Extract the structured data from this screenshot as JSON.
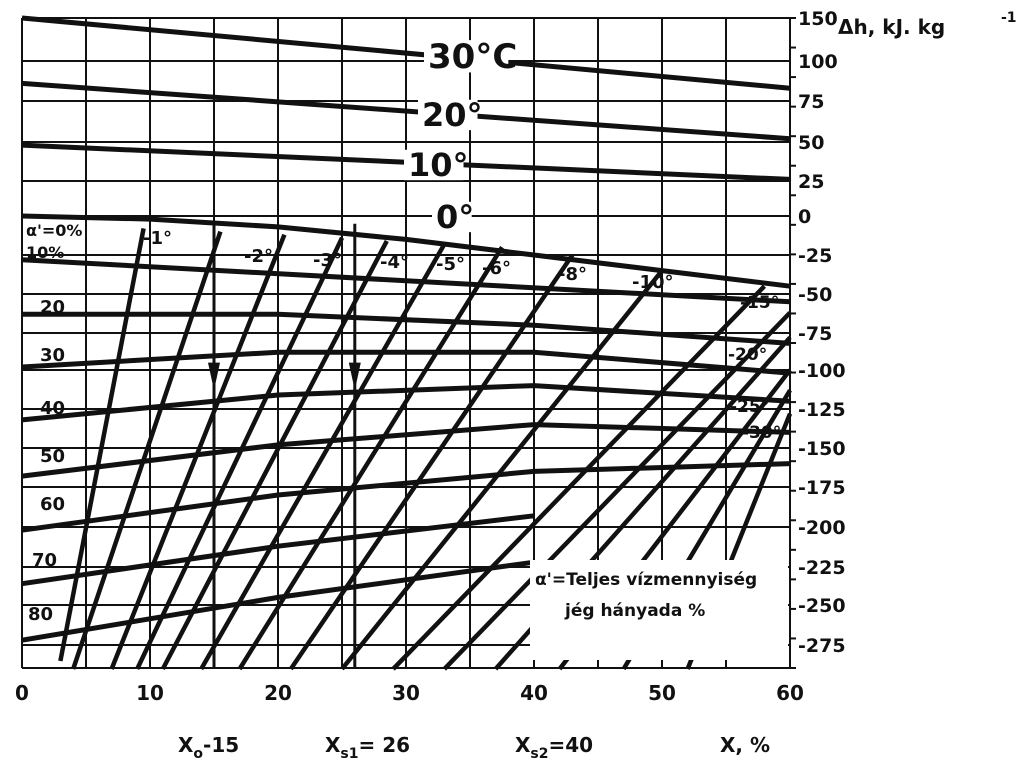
{
  "chart_data": {
    "type": "line",
    "title": "",
    "xlabel": "X, %",
    "ylabel": "Δh, kJ. kg",
    "ylabel_exp": "-1",
    "xlim": [
      0,
      60
    ],
    "ylim": [
      -290,
      150
    ],
    "x_ticks": [
      "0",
      "10",
      "20",
      "30",
      "40",
      "50",
      "60"
    ],
    "y_ticks": [
      "150",
      "100",
      "75",
      "50",
      "25",
      "0",
      "-25",
      "-50",
      "-75",
      "-100",
      "-125",
      "-150",
      "-175",
      "-200",
      "-225",
      "-250",
      "-275"
    ],
    "grid": true,
    "temperature_lines": [
      {
        "label": "30°C",
        "x": [
          0,
          60
        ],
        "y": [
          150,
          83
        ]
      },
      {
        "label": "20°",
        "x": [
          0,
          60
        ],
        "y": [
          86,
          52
        ]
      },
      {
        "label": "10°",
        "x": [
          0,
          60
        ],
        "y": [
          48,
          26
        ]
      },
      {
        "label": "0°",
        "x": [
          0,
          10,
          20,
          30,
          40,
          50,
          60
        ],
        "y": [
          0,
          -2,
          -7,
          -15,
          -25,
          -35,
          -45
        ]
      }
    ],
    "temperature_labels_below_zero": [
      "-1°",
      "-2°",
      "-3°",
      "-4°",
      "-5°",
      "-6°",
      "-8°",
      "-10°",
      "-15°",
      "-20°",
      "-25°",
      "-30°"
    ],
    "ice_fraction_curves": [
      {
        "label": "α'=0%",
        "x": [
          0,
          10,
          20,
          30,
          40,
          50,
          60
        ],
        "y": [
          0,
          -2,
          -7,
          -15,
          -25,
          -35,
          -45
        ]
      },
      {
        "label": "10%",
        "x": [
          0,
          60
        ],
        "y": [
          -28,
          -55
        ]
      },
      {
        "label": "20",
        "x": [
          0,
          20,
          40,
          60
        ],
        "y": [
          -63,
          -63,
          -70,
          -82
        ]
      },
      {
        "label": "30",
        "x": [
          0,
          20,
          40,
          60
        ],
        "y": [
          -98,
          -88,
          -88,
          -102
        ]
      },
      {
        "label": "40",
        "x": [
          0,
          20,
          40,
          60
        ],
        "y": [
          -132,
          -116,
          -110,
          -120
        ]
      },
      {
        "label": "50",
        "x": [
          0,
          20,
          40,
          60
        ],
        "y": [
          -168,
          -148,
          -135,
          -140
        ]
      },
      {
        "label": "60",
        "x": [
          0,
          20,
          40,
          60
        ],
        "y": [
          -202,
          -180,
          -165,
          -160
        ]
      },
      {
        "label": "70",
        "x": [
          0,
          20,
          40
        ],
        "y": [
          -236,
          -212,
          -193
        ]
      },
      {
        "label": "80",
        "x": [
          0,
          20,
          40
        ],
        "y": [
          -272,
          -245,
          -222
        ]
      }
    ],
    "bottom_markers": [
      {
        "label": "X",
        "sub": "o",
        "suffix": "-15",
        "x": 15
      },
      {
        "label": "X",
        "sub": "s1",
        "suffix": "= 26",
        "x": 26
      },
      {
        "label": "X",
        "sub": "s2",
        "suffix": "=40",
        "x": 40
      }
    ],
    "annotation": {
      "line1": "α'=Teljes vízmennyiség",
      "line2": "jég hányada %"
    }
  }
}
